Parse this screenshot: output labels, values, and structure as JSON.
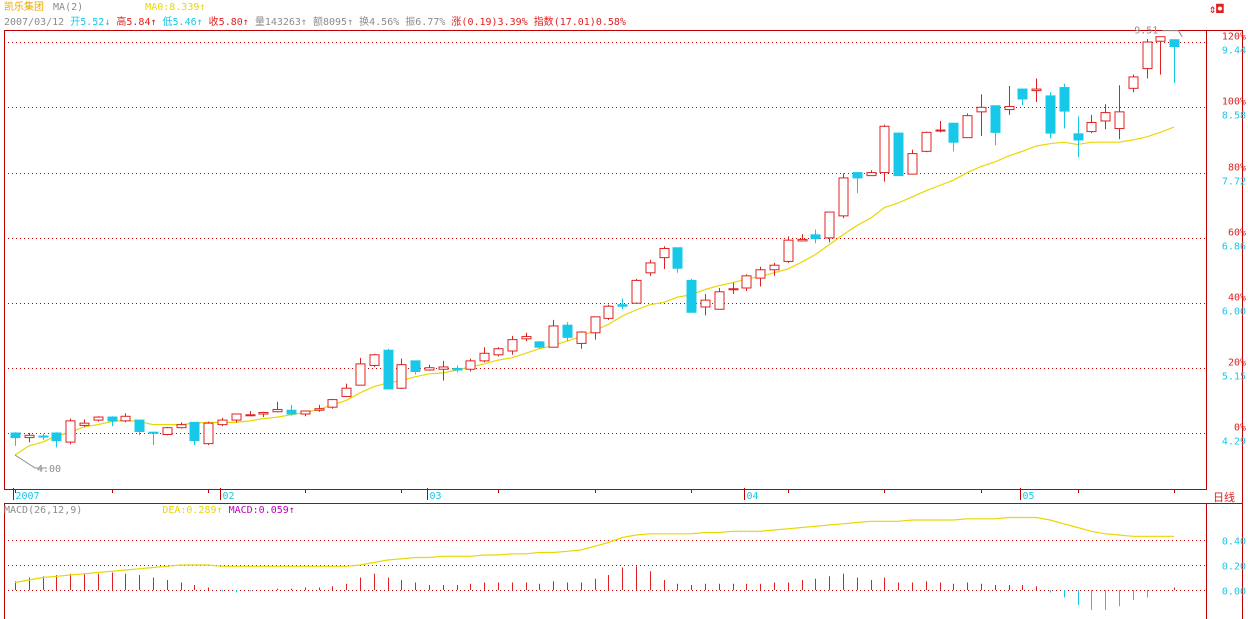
{
  "header": {
    "stock_name": "凯乐集团",
    "ma_label": "MA(2)",
    "ma_value": "MA0:8.339↑",
    "date": "2007/03/12",
    "open_label": "开",
    "open_value": "5.52↓",
    "high_label": "高",
    "high_value": "5.84↑",
    "low_label": "低",
    "low_value": "5.46↑",
    "close_label": "收",
    "close_value": "5.80↑",
    "volume_label": "量",
    "volume_value": "143263↑",
    "amount_label": "额",
    "amount_value": "8095↑",
    "turnover_label": "换",
    "turnover_value": "4.56%",
    "amplitude_label": "振",
    "amplitude_value": "6.77%",
    "change_label": "涨",
    "change_value": "(0.19)3.39%",
    "index_label": "指数",
    "index_value": "(17.01)0.58%"
  },
  "macd_header": {
    "title": "MACD(26,12,9)",
    "dea": "DEA:0.289↑",
    "macd": "MACD:0.059↑"
  },
  "period_tab": "日线",
  "corner_icon": "exit-icon",
  "colors": {
    "up": "#e02020",
    "down": "#18c8e8",
    "ma": "#e8d800",
    "dea": "#e8d800",
    "grid": "#c00000",
    "axis": "#c00000",
    "text_gray": "#8c8c8c"
  },
  "chart_data": [
    {
      "type": "candlestick",
      "title": "",
      "price_ticks": [
        "9.44",
        "8.58",
        "7.72",
        "6.86",
        "6.00",
        "5.15",
        "4.29"
      ],
      "percent_ticks": [
        "120%",
        "100%",
        "80%",
        "60%",
        "40%",
        "20%",
        "0%"
      ],
      "ylim": [
        3.95,
        9.75
      ],
      "grid": true,
      "x_month_labels": [
        {
          "index": 0,
          "label": "2007"
        },
        {
          "index": 15,
          "label": "02"
        },
        {
          "index": 30,
          "label": "03"
        },
        {
          "index": 53,
          "label": "04"
        },
        {
          "index": 73,
          "label": "05"
        }
      ],
      "annotations": [
        {
          "label": "4.00",
          "index": 0,
          "value": 4.0
        },
        {
          "label": "9.51",
          "index": 84,
          "value": 9.51
        }
      ],
      "candles": [
        [
          4.29,
          4.23,
          4.3,
          4.12
        ],
        [
          4.23,
          4.26,
          4.29,
          4.17
        ],
        [
          4.25,
          4.24,
          4.28,
          4.2
        ],
        [
          4.29,
          4.19,
          4.3,
          4.1
        ],
        [
          4.17,
          4.45,
          4.48,
          4.14
        ],
        [
          4.39,
          4.42,
          4.47,
          4.37
        ],
        [
          4.46,
          4.5,
          4.51,
          4.44
        ],
        [
          4.5,
          4.45,
          4.51,
          4.38
        ],
        [
          4.45,
          4.51,
          4.55,
          4.43
        ],
        [
          4.46,
          4.31,
          4.46,
          4.26
        ],
        [
          4.3,
          4.29,
          4.31,
          4.13
        ],
        [
          4.27,
          4.36,
          4.37,
          4.26
        ],
        [
          4.36,
          4.4,
          4.43,
          4.35
        ],
        [
          4.43,
          4.19,
          4.43,
          4.13
        ],
        [
          4.15,
          4.42,
          4.44,
          4.13
        ],
        [
          4.4,
          4.46,
          4.49,
          4.38
        ],
        [
          4.46,
          4.54,
          4.54,
          4.43
        ],
        [
          4.53,
          4.53,
          4.58,
          4.51
        ],
        [
          4.54,
          4.56,
          4.57,
          4.5
        ],
        [
          4.57,
          4.6,
          4.7,
          4.56
        ],
        [
          4.59,
          4.54,
          4.66,
          4.52
        ],
        [
          4.54,
          4.58,
          4.58,
          4.51
        ],
        [
          4.59,
          4.61,
          4.66,
          4.57
        ],
        [
          4.63,
          4.73,
          4.74,
          4.61
        ],
        [
          4.77,
          4.88,
          4.94,
          4.77
        ],
        [
          4.92,
          5.2,
          5.28,
          4.93
        ],
        [
          5.18,
          5.32,
          5.33,
          5.16
        ],
        [
          5.38,
          4.87,
          5.4,
          4.87
        ],
        [
          4.88,
          5.19,
          5.27,
          4.87
        ],
        [
          5.24,
          5.1,
          5.21,
          5.06
        ],
        [
          5.12,
          5.15,
          5.19,
          5.11
        ],
        [
          5.13,
          5.16,
          5.24,
          4.98
        ],
        [
          5.14,
          5.12,
          5.18,
          5.09
        ],
        [
          5.13,
          5.24,
          5.27,
          5.1
        ],
        [
          5.24,
          5.34,
          5.42,
          5.22
        ],
        [
          5.32,
          5.4,
          5.42,
          5.3
        ],
        [
          5.37,
          5.52,
          5.57,
          5.32
        ],
        [
          5.53,
          5.56,
          5.61,
          5.5
        ],
        [
          5.49,
          5.42,
          5.5,
          5.4
        ],
        [
          5.42,
          5.7,
          5.78,
          5.42
        ],
        [
          5.71,
          5.55,
          5.75,
          5.5
        ],
        [
          5.47,
          5.62,
          5.63,
          5.4
        ],
        [
          5.61,
          5.82,
          5.82,
          5.52
        ],
        [
          5.8,
          5.96,
          5.98,
          5.78
        ],
        [
          5.98,
          5.96,
          6.06,
          5.92
        ],
        [
          6.0,
          6.3,
          6.32,
          6.03
        ],
        [
          6.4,
          6.53,
          6.57,
          6.36
        ],
        [
          6.6,
          6.72,
          6.75,
          6.45
        ],
        [
          6.73,
          6.46,
          6.73,
          6.4
        ],
        [
          6.3,
          5.88,
          6.32,
          5.88
        ],
        [
          5.95,
          6.04,
          6.12,
          5.84
        ],
        [
          5.92,
          6.15,
          6.2,
          5.92
        ],
        [
          6.18,
          6.19,
          6.27,
          6.12
        ],
        [
          6.2,
          6.36,
          6.38,
          6.16
        ],
        [
          6.33,
          6.44,
          6.48,
          6.22
        ],
        [
          6.44,
          6.5,
          6.53,
          6.36
        ],
        [
          6.55,
          6.83,
          6.88,
          6.53
        ],
        [
          6.82,
          6.84,
          6.91,
          6.82
        ],
        [
          6.9,
          6.85,
          6.97,
          6.79
        ],
        [
          6.86,
          7.2,
          7.2,
          6.8
        ],
        [
          7.15,
          7.65,
          7.71,
          7.12
        ],
        [
          7.72,
          7.65,
          7.68,
          7.45
        ],
        [
          7.68,
          7.72,
          7.75,
          7.7
        ],
        [
          7.72,
          8.33,
          8.35,
          7.6
        ],
        [
          8.24,
          7.68,
          8.2,
          7.7
        ],
        [
          7.7,
          7.97,
          8.02,
          7.71
        ],
        [
          8.0,
          8.25,
          8.26,
          7.99
        ],
        [
          8.28,
          8.28,
          8.4,
          8.25
        ],
        [
          8.37,
          8.12,
          8.36,
          8.0
        ],
        [
          8.18,
          8.47,
          8.5,
          8.2
        ],
        [
          8.52,
          8.58,
          8.75,
          8.2
        ],
        [
          8.6,
          8.25,
          8.56,
          8.08
        ],
        [
          8.55,
          8.59,
          8.86,
          8.48
        ],
        [
          8.82,
          8.69,
          8.82,
          8.61
        ],
        [
          8.8,
          8.82,
          8.96,
          8.65
        ],
        [
          8.73,
          8.24,
          8.78,
          8.17
        ],
        [
          8.84,
          8.53,
          8.89,
          8.3
        ],
        [
          8.23,
          8.15,
          8.46,
          7.92
        ],
        [
          8.26,
          8.38,
          8.48,
          8.24
        ],
        [
          8.4,
          8.51,
          8.62,
          8.29
        ],
        [
          8.3,
          8.52,
          8.87,
          8.16
        ],
        [
          8.83,
          8.98,
          9.01,
          8.78
        ],
        [
          9.09,
          9.44,
          9.48,
          8.96
        ],
        [
          9.45,
          9.51,
          9.51,
          9.01
        ],
        [
          9.47,
          9.38,
          9.46,
          8.9
        ]
      ],
      "ma_line": [
        4.0,
        4.12,
        4.17,
        4.25,
        4.3,
        4.37,
        4.4,
        4.44,
        4.46,
        4.44,
        4.4,
        4.4,
        4.4,
        4.42,
        4.43,
        4.43,
        4.43,
        4.45,
        4.48,
        4.5,
        4.53,
        4.56,
        4.6,
        4.66,
        4.72,
        4.82,
        4.9,
        4.95,
        4.98,
        5.03,
        5.07,
        5.08,
        5.12,
        5.16,
        5.2,
        5.25,
        5.28,
        5.34,
        5.4,
        5.44,
        5.5,
        5.56,
        5.64,
        5.72,
        5.83,
        5.91,
        5.98,
        6.01,
        6.08,
        6.11,
        6.18,
        6.23,
        6.27,
        6.32,
        6.35,
        6.4,
        6.45,
        6.54,
        6.64,
        6.77,
        6.9,
        7.02,
        7.12,
        7.26,
        7.32,
        7.4,
        7.48,
        7.55,
        7.62,
        7.72,
        7.8,
        7.86,
        7.94,
        8.0,
        8.07,
        8.1,
        8.12,
        8.09,
        8.12,
        8.12,
        8.12,
        8.15,
        8.19,
        8.25,
        8.32
      ]
    },
    {
      "type": "bar",
      "title": "MACD(26,12,9)",
      "y_ticks": [
        "0.40",
        "0.20",
        "0.00"
      ],
      "ylim": [
        -0.18,
        0.65
      ],
      "grid": true,
      "dea_line": [
        0.06,
        0.08,
        0.1,
        0.11,
        0.12,
        0.13,
        0.14,
        0.15,
        0.16,
        0.17,
        0.18,
        0.19,
        0.2,
        0.2,
        0.2,
        0.19,
        0.19,
        0.19,
        0.19,
        0.19,
        0.19,
        0.19,
        0.19,
        0.19,
        0.19,
        0.2,
        0.22,
        0.24,
        0.25,
        0.26,
        0.26,
        0.27,
        0.27,
        0.27,
        0.28,
        0.28,
        0.29,
        0.29,
        0.3,
        0.3,
        0.31,
        0.32,
        0.35,
        0.38,
        0.42,
        0.44,
        0.45,
        0.45,
        0.45,
        0.45,
        0.46,
        0.46,
        0.47,
        0.47,
        0.47,
        0.48,
        0.49,
        0.5,
        0.51,
        0.52,
        0.53,
        0.54,
        0.55,
        0.55,
        0.55,
        0.56,
        0.56,
        0.56,
        0.56,
        0.57,
        0.57,
        0.57,
        0.58,
        0.58,
        0.58,
        0.56,
        0.53,
        0.5,
        0.47,
        0.45,
        0.44,
        0.43,
        0.43,
        0.43,
        0.43
      ],
      "macd_bars": [
        0.07,
        0.1,
        0.11,
        0.12,
        0.13,
        0.13,
        0.13,
        0.14,
        0.13,
        0.12,
        0.1,
        0.08,
        0.06,
        0.04,
        0.02,
        -0.01,
        -0.02,
        -0.01,
        0.0,
        0.01,
        0.01,
        0.02,
        0.02,
        0.03,
        0.05,
        0.1,
        0.13,
        0.1,
        0.08,
        0.06,
        0.04,
        0.04,
        0.04,
        0.05,
        0.06,
        0.06,
        0.06,
        0.06,
        0.05,
        0.07,
        0.06,
        0.06,
        0.09,
        0.12,
        0.18,
        0.19,
        0.15,
        0.08,
        0.05,
        0.04,
        0.05,
        0.05,
        0.05,
        0.05,
        0.05,
        0.06,
        0.06,
        0.08,
        0.09,
        0.11,
        0.13,
        0.1,
        0.08,
        0.1,
        0.06,
        0.06,
        0.07,
        0.06,
        0.05,
        0.06,
        0.05,
        0.04,
        0.04,
        0.04,
        0.03,
        -0.02,
        -0.06,
        -0.12,
        -0.16,
        -0.16,
        -0.13,
        -0.08,
        -0.06,
        0.0,
        0.02
      ]
    }
  ]
}
